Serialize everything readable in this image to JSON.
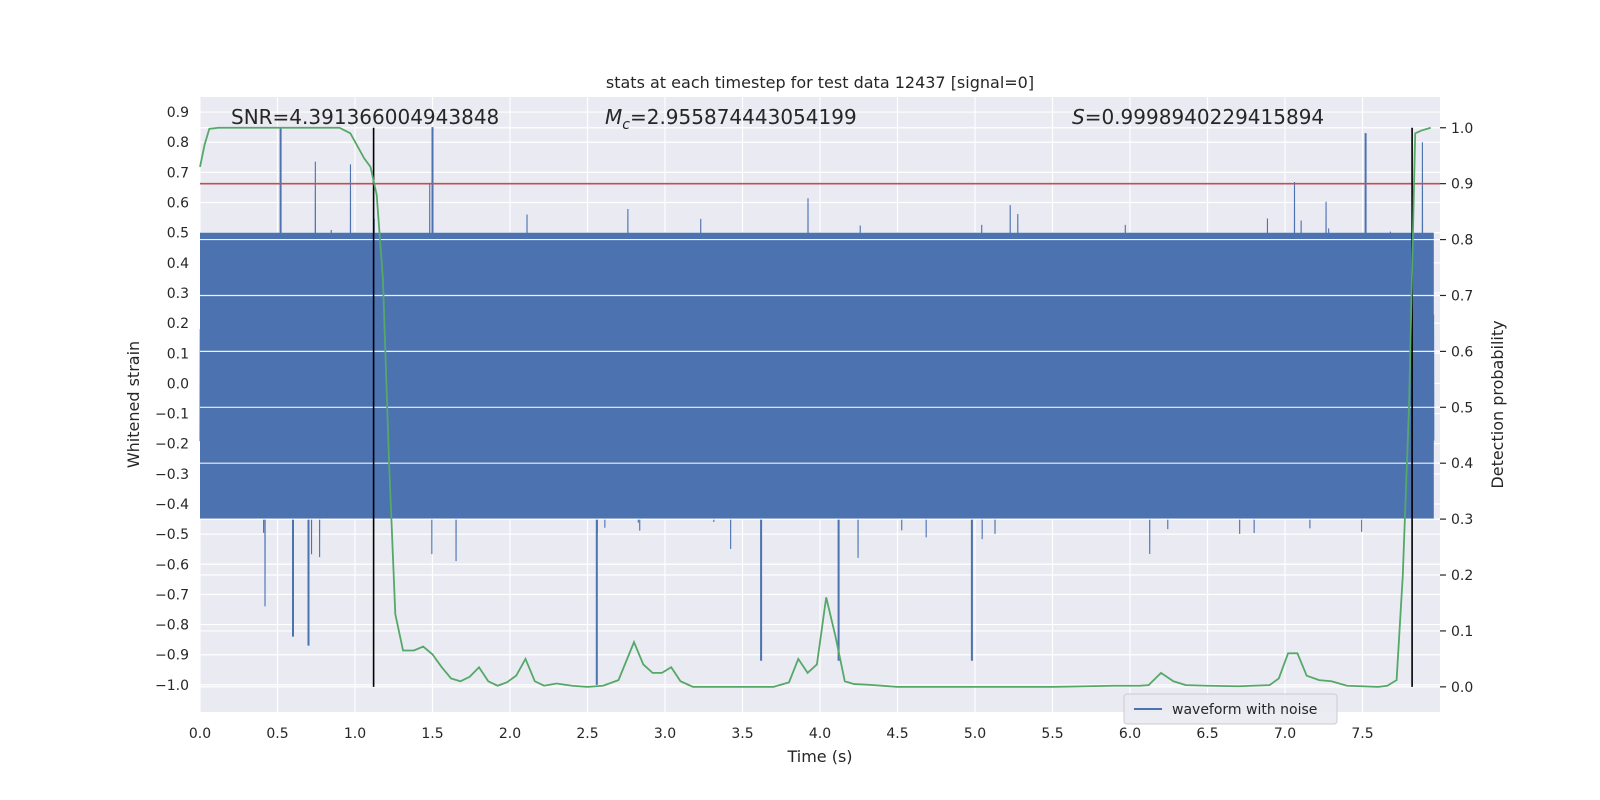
{
  "chart_data": {
    "type": "line",
    "title": "stats at each timestep for test data 12437 [signal=0]",
    "xlabel": "Time (s)",
    "ylabel": "Whitened strain",
    "ylabel_right": "Detection probability",
    "xlim": [
      0.0,
      8.0
    ],
    "ylim": [
      -1.09,
      0.95
    ],
    "ylim_right": [
      -0.045,
      1.055
    ],
    "x_ticks": [
      "0.0",
      "0.5",
      "1.0",
      "1.5",
      "2.0",
      "2.5",
      "3.0",
      "3.5",
      "4.0",
      "4.5",
      "5.0",
      "5.5",
      "6.0",
      "6.5",
      "7.0",
      "7.5"
    ],
    "y_ticks": [
      "0.9",
      "0.8",
      "0.7",
      "0.6",
      "0.5",
      "0.4",
      "0.3",
      "0.2",
      "0.1",
      "0.0",
      "-0.1",
      "-0.2",
      "-0.3",
      "-0.4",
      "-0.5",
      "-0.6",
      "-0.7",
      "-0.8",
      "-0.9",
      "-1.0"
    ],
    "y_ticks_right": [
      "1.0",
      "0.9",
      "0.8",
      "0.7",
      "0.6",
      "0.5",
      "0.4",
      "0.3",
      "0.2",
      "0.1",
      "0.0"
    ],
    "annotations": {
      "snr": "SNR=4.391366004943848",
      "mc": "M_c=2.955874443054199",
      "s": "S=0.9998940229415894"
    },
    "threshold": 0.9,
    "boundaries_x": [
      1.12,
      7.82
    ],
    "waveform": {
      "name": "waveform with noise",
      "typical_range": [
        -0.45,
        0.5
      ],
      "peak_max": 0.85,
      "trough_min": -1.0,
      "notable_troughs": [
        {
          "x": 0.6,
          "y": -0.84
        },
        {
          "x": 0.7,
          "y": -0.87
        },
        {
          "x": 2.56,
          "y": -1.0
        },
        {
          "x": 3.62,
          "y": -0.92
        },
        {
          "x": 4.12,
          "y": -0.92
        },
        {
          "x": 4.98,
          "y": -0.92
        }
      ],
      "notable_peaks": [
        {
          "x": 0.52,
          "y": 0.85
        },
        {
          "x": 1.5,
          "y": 0.85
        },
        {
          "x": 7.52,
          "y": 0.83
        }
      ]
    },
    "probability": {
      "name": "detection probability",
      "x": [
        0.0,
        0.03,
        0.06,
        0.12,
        0.3,
        0.5,
        0.7,
        0.9,
        0.97,
        1.02,
        1.06,
        1.1,
        1.14,
        1.18,
        1.22,
        1.26,
        1.31,
        1.38,
        1.44,
        1.5,
        1.56,
        1.62,
        1.68,
        1.74,
        1.8,
        1.86,
        1.92,
        1.98,
        2.04,
        2.1,
        2.16,
        2.22,
        2.3,
        2.4,
        2.5,
        2.6,
        2.7,
        2.8,
        2.86,
        2.92,
        2.98,
        3.04,
        3.1,
        3.18,
        3.3,
        3.5,
        3.7,
        3.8,
        3.86,
        3.92,
        3.98,
        4.04,
        4.1,
        4.16,
        4.22,
        4.3,
        4.5,
        5.0,
        5.5,
        5.9,
        6.06,
        6.12,
        6.2,
        6.28,
        6.36,
        6.5,
        6.7,
        6.9,
        6.96,
        7.02,
        7.08,
        7.14,
        7.22,
        7.3,
        7.4,
        7.5,
        7.6,
        7.66,
        7.72,
        7.76,
        7.8,
        7.84,
        7.88,
        7.94
      ],
      "y": [
        0.93,
        0.97,
        0.998,
        1.0,
        1.0,
        1.0,
        1.0,
        1.0,
        0.99,
        0.965,
        0.945,
        0.93,
        0.88,
        0.73,
        0.4,
        0.13,
        0.065,
        0.065,
        0.072,
        0.058,
        0.035,
        0.015,
        0.01,
        0.018,
        0.035,
        0.01,
        0.002,
        0.008,
        0.02,
        0.05,
        0.01,
        0.002,
        0.006,
        0.002,
        0.0,
        0.002,
        0.012,
        0.08,
        0.04,
        0.025,
        0.025,
        0.035,
        0.01,
        0.0,
        0.0,
        0.0,
        0.0,
        0.008,
        0.05,
        0.025,
        0.04,
        0.16,
        0.09,
        0.01,
        0.005,
        0.004,
        0.0,
        0.0,
        0.0,
        0.002,
        0.002,
        0.003,
        0.025,
        0.01,
        0.003,
        0.002,
        0.001,
        0.003,
        0.015,
        0.06,
        0.06,
        0.02,
        0.012,
        0.01,
        0.002,
        0.001,
        0.0,
        0.002,
        0.012,
        0.2,
        0.5,
        0.99,
        0.995,
        1.0
      ]
    },
    "legend": {
      "label": "waveform with noise",
      "location": "lower-center-right"
    },
    "colors": {
      "waveform": "#4c72b0",
      "probability": "#55a868",
      "threshold": "#c44e52",
      "boundary": "#000000",
      "background": "#eaeaf2",
      "grid": "#ffffff"
    }
  }
}
